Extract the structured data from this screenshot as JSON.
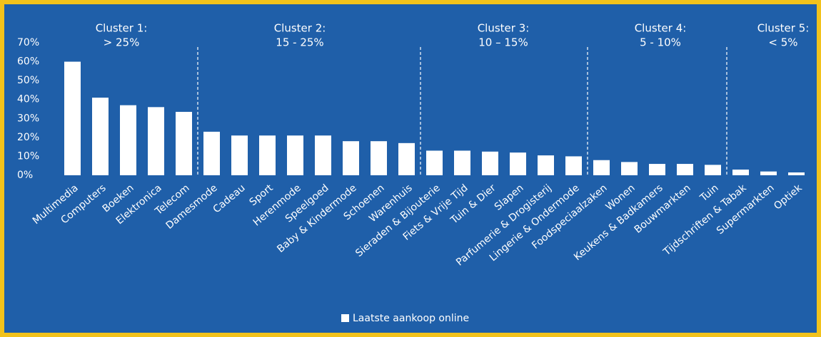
{
  "chart_data": {
    "type": "bar",
    "annotations": [
      [
        "Cluster 1:",
        "> 25%"
      ],
      [
        "Cluster 2:",
        "15 - 25%"
      ],
      [
        "Cluster 3:",
        "10 – 15%"
      ],
      [
        "Cluster 4:",
        "5 - 10%"
      ],
      [
        "Cluster 5:",
        "< 5%"
      ]
    ],
    "categories": [
      "Multimedia",
      "Computers",
      "Boeken",
      "Elektronica",
      "Telecom",
      "Damesmode",
      "Cadeau",
      "Sport",
      "Herenmode",
      "Speelgoed",
      "Baby & Kindermode",
      "Schoenen",
      "Warenhuis",
      "Sieraden & Bijouterie",
      "Fiets & Vrije Tijd",
      "Tuin & Dier",
      "Slapen",
      "Parfumerie & Drogisterij",
      "Lingerie & Ondermode",
      "Foodspeciaalzaken",
      "Wonen",
      "Keukens & Badkamers",
      "Bouwmarkten",
      "Tuin",
      "Tijdschriften & Tabak",
      "Supermarkten",
      "Optiek"
    ],
    "series": [
      {
        "name": "Laatste aankoop online",
        "color": "#ffffff",
        "values": [
          60,
          41,
          37,
          36,
          33.5,
          23,
          21,
          21,
          21,
          21,
          18,
          18,
          17,
          13,
          13,
          12.5,
          12,
          10.5,
          10,
          8,
          7,
          6,
          6,
          5.5,
          3,
          2,
          1.5
        ]
      }
    ],
    "ylim": [
      0,
      70
    ],
    "yticks": [
      {
        "value": 0,
        "label": "0%"
      },
      {
        "value": 10,
        "label": "10%"
      },
      {
        "value": 20,
        "label": "20%"
      },
      {
        "value": 30,
        "label": "30%"
      },
      {
        "value": 40,
        "label": "40%"
      },
      {
        "value": 50,
        "label": "50%"
      },
      {
        "value": 60,
        "label": "60%"
      },
      {
        "value": 70,
        "label": "70%"
      }
    ],
    "grid": false,
    "legend": "bottom"
  }
}
